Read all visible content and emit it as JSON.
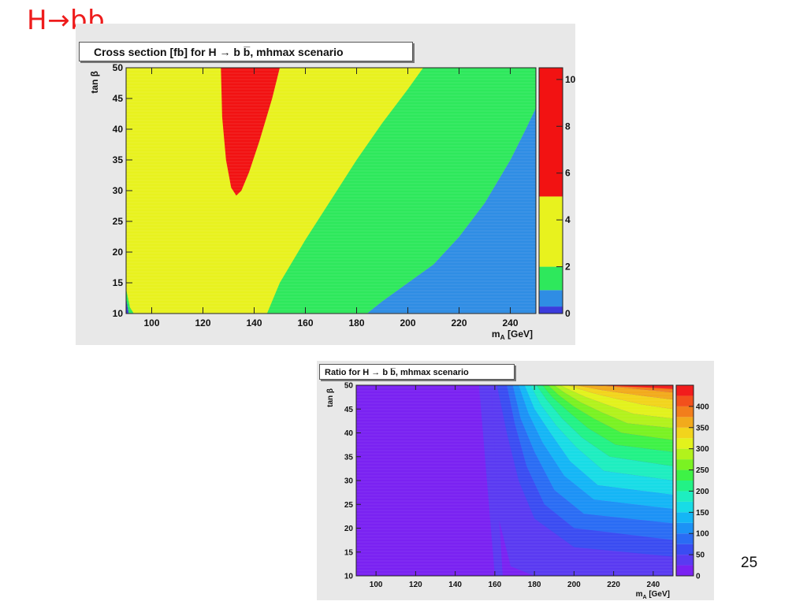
{
  "slide": {
    "title": "H→bb",
    "page_number": "25"
  },
  "chart_data": [
    {
      "type": "heatmap",
      "title": "Cross section [fb] for H → b b̅, mhmax scenario",
      "xlabel": "m_A [GeV]",
      "ylabel": "tan β",
      "xlim": [
        90,
        250
      ],
      "ylim": [
        10,
        50
      ],
      "x_ticks": [
        100,
        120,
        140,
        160,
        180,
        200,
        220,
        240
      ],
      "y_ticks": [
        10,
        15,
        20,
        25,
        30,
        35,
        40,
        45,
        50
      ],
      "colorbar": {
        "range": [
          0,
          10.5
        ],
        "ticks": [
          0,
          2,
          4,
          6,
          8,
          10
        ],
        "levels": [
          {
            "from": 0,
            "to": 0.3,
            "color": "#3b3bdc"
          },
          {
            "from": 0.3,
            "to": 1.0,
            "color": "#2f8de4"
          },
          {
            "from": 1.0,
            "to": 2.0,
            "color": "#2ee85c"
          },
          {
            "from": 2.0,
            "to": 5.0,
            "color": "#e8f21e"
          },
          {
            "from": 5.0,
            "to": 10.5,
            "color": "#f21212"
          }
        ]
      },
      "regions": [
        {
          "level": "blue",
          "color": "#2f8de4",
          "boundary": [
            [
              184,
              10
            ],
            [
              190,
              12
            ],
            [
              200,
              15
            ],
            [
              210,
              18
            ],
            [
              220,
              22.5
            ],
            [
              230,
              28
            ],
            [
              240,
              35
            ],
            [
              246,
              40
            ],
            [
              250,
              43.5
            ],
            [
              250,
              10
            ]
          ]
        },
        {
          "level": "green",
          "color": "#2ee85c",
          "boundary": [
            [
              145,
              10
            ],
            [
              150,
              15
            ],
            [
              160,
              22
            ],
            [
              170,
              28.5
            ],
            [
              180,
              35
            ],
            [
              190,
              41
            ],
            [
              200,
              46.5
            ],
            [
              206,
              50
            ],
            [
              250,
              50
            ],
            [
              250,
              43.5
            ],
            [
              246,
              40
            ],
            [
              240,
              35
            ],
            [
              230,
              28
            ],
            [
              220,
              22.5
            ],
            [
              210,
              18
            ],
            [
              200,
              15
            ],
            [
              190,
              12
            ],
            [
              184,
              10
            ]
          ]
        },
        {
          "level": "red",
          "color": "#f21212",
          "boundary": [
            [
              127,
              50
            ],
            [
              127.5,
              42
            ],
            [
              129,
              35
            ],
            [
              131,
              30.5
            ],
            [
              133,
              29.2
            ],
            [
              135,
              30
            ],
            [
              138,
              33
            ],
            [
              142,
              38
            ],
            [
              147,
              45
            ],
            [
              150,
              50
            ]
          ]
        },
        {
          "level": "lowcorner-green",
          "color": "#2ee85c",
          "boundary": [
            [
              90,
              10
            ],
            [
              90,
              14
            ],
            [
              91.5,
              11
            ],
            [
              93,
              10
            ]
          ]
        },
        {
          "level": "lowcorner-blue",
          "color": "#3b3bdc",
          "boundary": [
            [
              90,
              10
            ],
            [
              90,
              12.5
            ],
            [
              91,
              10
            ]
          ]
        }
      ]
    },
    {
      "type": "heatmap",
      "title": "Ratio for H → b b̅, mhmax scenario",
      "xlabel": "m_A [GeV]",
      "ylabel": "tan β",
      "xlim": [
        90,
        250
      ],
      "ylim": [
        10,
        50
      ],
      "x_ticks": [
        100,
        120,
        140,
        160,
        180,
        200,
        220,
        240
      ],
      "y_ticks": [
        10,
        15,
        20,
        25,
        30,
        35,
        40,
        45,
        50
      ],
      "colorbar": {
        "range": [
          0,
          450
        ],
        "ticks": [
          0,
          50,
          100,
          150,
          200,
          250,
          300,
          350,
          400
        ]
      },
      "contour_levels": [
        {
          "level": 0,
          "color": "#7a22f2"
        },
        {
          "level": 25,
          "color": "#5a3af2"
        },
        {
          "level": 50,
          "color": "#3a4cf2"
        },
        {
          "level": 75,
          "color": "#2a6cf4"
        },
        {
          "level": 100,
          "color": "#1c92f6"
        },
        {
          "level": 125,
          "color": "#14b6f6"
        },
        {
          "level": 150,
          "color": "#18dce6"
        },
        {
          "level": 175,
          "color": "#1eeec0"
        },
        {
          "level": 200,
          "color": "#22f286"
        },
        {
          "level": 225,
          "color": "#3ef246"
        },
        {
          "level": 250,
          "color": "#7af222"
        },
        {
          "level": 275,
          "color": "#b2f21c"
        },
        {
          "level": 300,
          "color": "#e2f21c"
        },
        {
          "level": 325,
          "color": "#f2d41c"
        },
        {
          "level": 350,
          "color": "#f2aa1c"
        },
        {
          "level": 375,
          "color": "#f27e1c"
        },
        {
          "level": 400,
          "color": "#f2501c"
        },
        {
          "level": 425,
          "color": "#f21c1c"
        }
      ],
      "transition_region": {
        "color": "#5a3af2",
        "boundary": [
          [
            152,
            50
          ],
          [
            158,
            50
          ],
          [
            164,
            10
          ],
          [
            160,
            10
          ]
        ]
      },
      "bands": [
        {
          "level": 25,
          "boundary": [
            [
              161,
              50
            ],
            [
              166,
              40
            ],
            [
              172,
              30
            ],
            [
              180,
              22
            ],
            [
              200,
              16
            ],
            [
              250,
              14
            ],
            [
              250,
              10
            ],
            [
              180,
              10
            ],
            [
              168,
              12
            ],
            [
              162,
              22
            ],
            [
              158,
              50
            ]
          ]
        },
        {
          "level": 50,
          "boundary": [
            [
              166,
              50
            ],
            [
              170,
              42
            ],
            [
              176,
              33
            ],
            [
              185,
              25
            ],
            [
              200,
              20
            ],
            [
              250,
              17.5
            ],
            [
              250,
              14
            ],
            [
              200,
              16
            ],
            [
              180,
              22
            ],
            [
              172,
              30
            ],
            [
              166,
              40
            ],
            [
              161,
              50
            ]
          ]
        },
        {
          "level": 75,
          "boundary": [
            [
              169,
              50
            ],
            [
              173,
              43
            ],
            [
              180,
              36
            ],
            [
              190,
              28
            ],
            [
              205,
              23
            ],
            [
              250,
              21
            ],
            [
              250,
              17.5
            ],
            [
              200,
              20
            ],
            [
              185,
              25
            ],
            [
              176,
              33
            ],
            [
              170,
              42
            ],
            [
              166,
              50
            ]
          ]
        },
        {
          "level": 100,
          "boundary": [
            [
              172,
              50
            ],
            [
              177,
              44
            ],
            [
              184,
              38
            ],
            [
              195,
              31
            ],
            [
              210,
              26
            ],
            [
              250,
              24
            ],
            [
              250,
              21
            ],
            [
              205,
              23
            ],
            [
              190,
              28
            ],
            [
              180,
              36
            ],
            [
              173,
              43
            ],
            [
              169,
              50
            ]
          ]
        },
        {
          "level": 125,
          "boundary": [
            [
              175,
              50
            ],
            [
              180,
              45
            ],
            [
              188,
              40
            ],
            [
              198,
              34
            ],
            [
              212,
              29
            ],
            [
              250,
              27
            ],
            [
              250,
              24
            ],
            [
              210,
              26
            ],
            [
              195,
              31
            ],
            [
              184,
              38
            ],
            [
              177,
              44
            ],
            [
              172,
              50
            ]
          ]
        },
        {
          "level": 150,
          "boundary": [
            [
              178,
              50
            ],
            [
              183,
              46
            ],
            [
              191,
              41.5
            ],
            [
              201,
              37
            ],
            [
              215,
              32
            ],
            [
              250,
              30
            ],
            [
              250,
              27
            ],
            [
              212,
              29
            ],
            [
              198,
              34
            ],
            [
              188,
              40
            ],
            [
              180,
              45
            ],
            [
              175,
              50
            ]
          ]
        },
        {
          "level": 175,
          "boundary": [
            [
              181,
              50
            ],
            [
              186,
              47
            ],
            [
              194,
              43
            ],
            [
              204,
              39
            ],
            [
              218,
              35
            ],
            [
              250,
              33
            ],
            [
              250,
              30
            ],
            [
              215,
              32
            ],
            [
              201,
              37
            ],
            [
              191,
              41.5
            ],
            [
              183,
              46
            ],
            [
              178,
              50
            ]
          ]
        },
        {
          "level": 200,
          "boundary": [
            [
              184,
              50
            ],
            [
              189,
              47.5
            ],
            [
              197,
              44.5
            ],
            [
              207,
              41
            ],
            [
              221,
              37.5
            ],
            [
              250,
              36
            ],
            [
              250,
              33
            ],
            [
              218,
              35
            ],
            [
              204,
              39
            ],
            [
              194,
              43
            ],
            [
              186,
              47
            ],
            [
              181,
              50
            ]
          ]
        },
        {
          "level": 225,
          "boundary": [
            [
              187,
              50
            ],
            [
              192,
              48
            ],
            [
              200,
              45.5
            ],
            [
              210,
              43
            ],
            [
              224,
              40
            ],
            [
              250,
              38.5
            ],
            [
              250,
              36
            ],
            [
              221,
              37.5
            ],
            [
              207,
              41
            ],
            [
              197,
              44.5
            ],
            [
              189,
              47.5
            ],
            [
              184,
              50
            ]
          ]
        },
        {
          "level": 250,
          "boundary": [
            [
              190,
              50
            ],
            [
              195,
              48.5
            ],
            [
              203,
              46.5
            ],
            [
              213,
              44.5
            ],
            [
              227,
              42
            ],
            [
              250,
              41
            ],
            [
              250,
              38.5
            ],
            [
              224,
              40
            ],
            [
              210,
              43
            ],
            [
              200,
              45.5
            ],
            [
              192,
              48
            ],
            [
              187,
              50
            ]
          ]
        },
        {
          "level": 275,
          "boundary": [
            [
              193,
              50
            ],
            [
              198,
              49
            ],
            [
              206,
              47.5
            ],
            [
              216,
              46
            ],
            [
              230,
              44
            ],
            [
              250,
              43
            ],
            [
              250,
              41
            ],
            [
              227,
              42
            ],
            [
              213,
              44.5
            ],
            [
              203,
              46.5
            ],
            [
              195,
              48.5
            ],
            [
              190,
              50
            ]
          ]
        },
        {
          "level": 300,
          "boundary": [
            [
              197,
              50
            ],
            [
              202,
              49.3
            ],
            [
              210,
              48.3
            ],
            [
              220,
              47.3
            ],
            [
              234,
              46
            ],
            [
              250,
              45
            ],
            [
              250,
              43
            ],
            [
              230,
              44
            ],
            [
              216,
              46
            ],
            [
              206,
              47.5
            ],
            [
              198,
              49
            ],
            [
              193,
              50
            ]
          ]
        },
        {
          "level": 325,
          "boundary": [
            [
              201,
              50
            ],
            [
              206,
              49.6
            ],
            [
              214,
              49
            ],
            [
              224,
              48.4
            ],
            [
              238,
              47.6
            ],
            [
              250,
              47
            ],
            [
              250,
              45
            ],
            [
              234,
              46
            ],
            [
              220,
              47.3
            ],
            [
              210,
              48.3
            ],
            [
              202,
              49.3
            ],
            [
              197,
              50
            ]
          ]
        },
        {
          "level": 350,
          "boundary": [
            [
              205,
              50
            ],
            [
              218,
              49.8
            ],
            [
              230,
              49.3
            ],
            [
              242,
              48.8
            ],
            [
              250,
              48.5
            ],
            [
              250,
              47
            ],
            [
              238,
              47.6
            ],
            [
              224,
              48.4
            ],
            [
              214,
              49
            ],
            [
              206,
              49.6
            ],
            [
              201,
              50
            ]
          ]
        },
        {
          "level": 375,
          "boundary": [
            [
              209,
              50
            ],
            [
              250,
              50
            ],
            [
              250,
              48.5
            ],
            [
              242,
              48.8
            ],
            [
              230,
              49.3
            ],
            [
              218,
              49.8
            ],
            [
              205,
              50
            ]
          ]
        }
      ]
    }
  ]
}
